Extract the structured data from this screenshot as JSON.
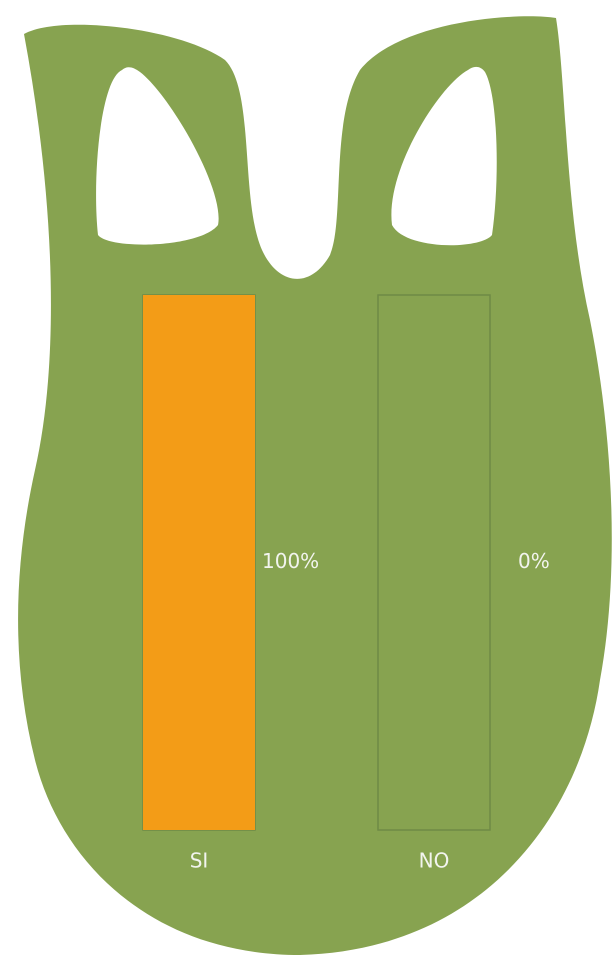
{
  "chart_data": {
    "type": "bar",
    "categories": [
      "SI",
      "NO"
    ],
    "values": [
      100,
      0
    ],
    "value_labels": [
      "100%",
      "0%"
    ],
    "color": "#f39c17",
    "ylim": [
      0,
      100
    ]
  }
}
